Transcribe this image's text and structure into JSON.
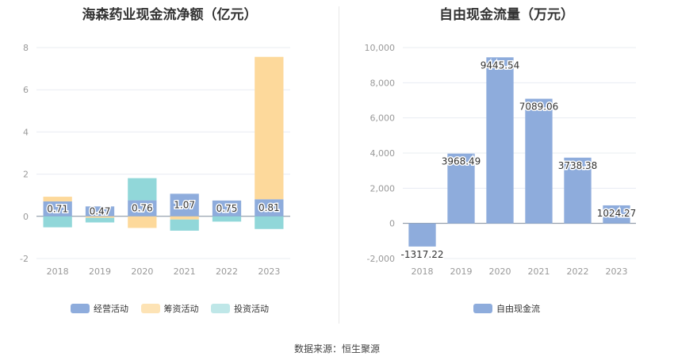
{
  "chart_data": [
    {
      "type": "bar",
      "stacked": true,
      "title": "海森药业现金流净额（亿元）",
      "categories": [
        "2018",
        "2019",
        "2020",
        "2021",
        "2022",
        "2023"
      ],
      "series": [
        {
          "name": "经营活动",
          "color": "#8eacdc",
          "values": [
            0.71,
            0.47,
            0.76,
            1.07,
            0.75,
            0.81
          ]
        },
        {
          "name": "筹资活动",
          "color": "#fdd99b",
          "values": [
            0.22,
            -0.07,
            -0.55,
            -0.15,
            0.0,
            6.75
          ]
        },
        {
          "name": "投资活动",
          "color": "#91d7d9",
          "values": [
            -0.52,
            -0.22,
            1.05,
            -0.53,
            -0.25,
            -0.6
          ]
        }
      ],
      "data_labels": [
        "0.71",
        "0.47",
        "0.76",
        "1.07",
        "0.75",
        "0.81"
      ],
      "ylim": [
        -2,
        8
      ],
      "yticks": [
        "-2",
        "0",
        "2",
        "4",
        "6",
        "8"
      ],
      "grid": true,
      "legend_position": "bottom"
    },
    {
      "type": "bar",
      "title": "自由现金流量（万元）",
      "categories": [
        "2018",
        "2019",
        "2020",
        "2021",
        "2022",
        "2023"
      ],
      "series": [
        {
          "name": "自由现金流",
          "color": "#8eacdc",
          "values": [
            -1317.22,
            3968.49,
            9445.54,
            7089.06,
            3738.38,
            1024.27
          ]
        }
      ],
      "data_labels": [
        "-1317.22",
        "3968.49",
        "9445.54",
        "7089.06",
        "3738.38",
        "1024.27"
      ],
      "ylim": [
        -2000,
        10000
      ],
      "yticks": [
        "-2,000",
        "0",
        "2,000",
        "4,000",
        "6,000",
        "8,000",
        "10,000"
      ],
      "grid": true,
      "legend_position": "bottom"
    }
  ],
  "footer": {
    "source": "数据来源：恒生聚源"
  }
}
